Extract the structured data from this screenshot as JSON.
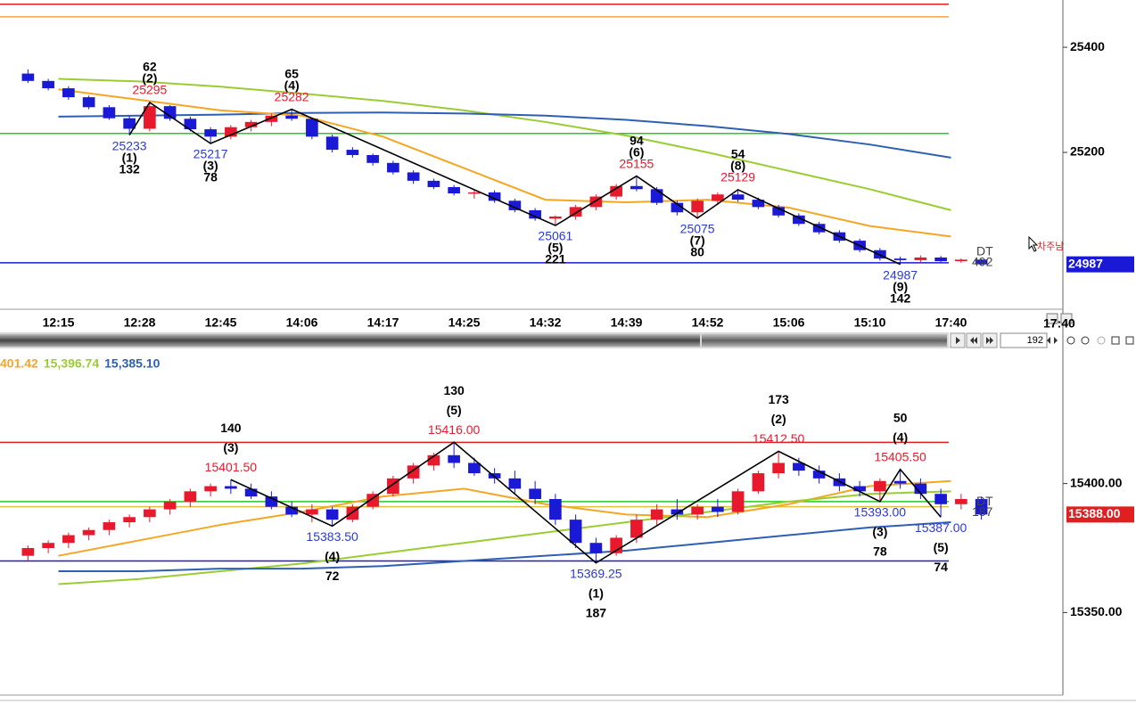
{
  "chart_data": [
    {
      "type": "candlestick",
      "categories": [
        "12:15",
        "12:28",
        "12:45",
        "14:06",
        "14:17",
        "14:25",
        "14:32",
        "14:39",
        "14:52",
        "15:06",
        "15:10",
        "17:40"
      ],
      "time_label": "17:40",
      "bars": 192,
      "cursor_note": "차주남",
      "ylim": [
        24905,
        25490
      ],
      "yticks": [
        25400,
        25200
      ],
      "candles": [
        {
          "open": 25350,
          "high": 25358,
          "low": 25332,
          "close": 25336
        },
        {
          "open": 25336,
          "high": 25340,
          "low": 25318,
          "close": 25322
        },
        {
          "open": 25322,
          "high": 25326,
          "low": 25300,
          "close": 25305
        },
        {
          "open": 25305,
          "high": 25308,
          "low": 25282,
          "close": 25286
        },
        {
          "open": 25286,
          "high": 25290,
          "low": 25262,
          "close": 25265
        },
        {
          "open": 25265,
          "high": 25270,
          "low": 25233,
          "close": 25245
        },
        {
          "open": 25245,
          "high": 25295,
          "low": 25240,
          "close": 25288
        },
        {
          "open": 25288,
          "high": 25290,
          "low": 25260,
          "close": 25264
        },
        {
          "open": 25264,
          "high": 25268,
          "low": 25240,
          "close": 25244
        },
        {
          "open": 25244,
          "high": 25248,
          "low": 25217,
          "close": 25230
        },
        {
          "open": 25230,
          "high": 25252,
          "low": 25225,
          "close": 25248
        },
        {
          "open": 25248,
          "high": 25262,
          "low": 25240,
          "close": 25258
        },
        {
          "open": 25258,
          "high": 25274,
          "low": 25250,
          "close": 25270
        },
        {
          "open": 25270,
          "high": 25282,
          "low": 25260,
          "close": 25264
        },
        {
          "open": 25264,
          "high": 25266,
          "low": 25225,
          "close": 25230
        },
        {
          "open": 25230,
          "high": 25234,
          "low": 25200,
          "close": 25205
        },
        {
          "open": 25205,
          "high": 25210,
          "low": 25190,
          "close": 25195
        },
        {
          "open": 25195,
          "high": 25198,
          "low": 25175,
          "close": 25180
        },
        {
          "open": 25180,
          "high": 25184,
          "low": 25158,
          "close": 25162
        },
        {
          "open": 25162,
          "high": 25166,
          "low": 25140,
          "close": 25146
        },
        {
          "open": 25146,
          "high": 25150,
          "low": 25130,
          "close": 25134
        },
        {
          "open": 25134,
          "high": 25138,
          "low": 25118,
          "close": 25122
        },
        {
          "open": 25122,
          "high": 25130,
          "low": 25112,
          "close": 25124
        },
        {
          "open": 25124,
          "high": 25128,
          "low": 25104,
          "close": 25108
        },
        {
          "open": 25108,
          "high": 25112,
          "low": 25086,
          "close": 25090
        },
        {
          "open": 25090,
          "high": 25094,
          "low": 25070,
          "close": 25074
        },
        {
          "open": 25074,
          "high": 25080,
          "low": 25061,
          "close": 25078
        },
        {
          "open": 25078,
          "high": 25100,
          "low": 25072,
          "close": 25096
        },
        {
          "open": 25096,
          "high": 25120,
          "low": 25090,
          "close": 25116
        },
        {
          "open": 25116,
          "high": 25140,
          "low": 25110,
          "close": 25136
        },
        {
          "open": 25136,
          "high": 25155,
          "low": 25126,
          "close": 25130
        },
        {
          "open": 25130,
          "high": 25134,
          "low": 25100,
          "close": 25104
        },
        {
          "open": 25104,
          "high": 25108,
          "low": 25080,
          "close": 25086
        },
        {
          "open": 25086,
          "high": 25112,
          "low": 25075,
          "close": 25108
        },
        {
          "open": 25108,
          "high": 25124,
          "low": 25100,
          "close": 25120
        },
        {
          "open": 25120,
          "high": 25129,
          "low": 25106,
          "close": 25110
        },
        {
          "open": 25110,
          "high": 25114,
          "low": 25092,
          "close": 25096
        },
        {
          "open": 25096,
          "high": 25100,
          "low": 25076,
          "close": 25080
        },
        {
          "open": 25080,
          "high": 25084,
          "low": 25060,
          "close": 25064
        },
        {
          "open": 25064,
          "high": 25068,
          "low": 25044,
          "close": 25048
        },
        {
          "open": 25048,
          "high": 25052,
          "low": 25028,
          "close": 25032
        },
        {
          "open": 25032,
          "high": 25036,
          "low": 25010,
          "close": 25014
        },
        {
          "open": 25014,
          "high": 25018,
          "low": 24994,
          "close": 24998
        },
        {
          "open": 24998,
          "high": 25002,
          "low": 24987,
          "close": 24995
        },
        {
          "open": 24995,
          "high": 25004,
          "low": 24990,
          "close": 25000
        },
        {
          "open": 25000,
          "high": 25003,
          "low": 24991,
          "close": 24993
        },
        {
          "open": 24993,
          "high": 24998,
          "low": 24990,
          "close": 24996
        },
        {
          "open": 24996,
          "high": 24997,
          "low": 24987,
          "close": 24987
        }
      ],
      "series": [
        {
          "color": "#9acd32",
          "values": [
            25340,
            25335,
            25325,
            25312,
            25298,
            25280,
            25258,
            25232,
            25200,
            25165,
            25130,
            25090
          ]
        },
        {
          "color": "#2f5fb3",
          "values": [
            25268,
            25270,
            25272,
            25275,
            25276,
            25274,
            25270,
            25262,
            25250,
            25235,
            25215,
            25190
          ]
        },
        {
          "color": "#f5a623",
          "values": [
            25320,
            25300,
            25280,
            25270,
            25230,
            25170,
            25110,
            25105,
            25110,
            25095,
            25060,
            25040
          ]
        }
      ],
      "levels": [
        {
          "value": 25482,
          "color": "#e02020"
        },
        {
          "value": 25458,
          "color": "#f5a040"
        },
        {
          "value": 25236,
          "color": "#22cc22"
        },
        {
          "value": 24990,
          "color": "#1a1ad6"
        }
      ],
      "pivots": [
        {
          "price": 25233,
          "wave": "(1)",
          "count": 132
        },
        {
          "price": 25295,
          "wave": "(2)",
          "count": 62
        },
        {
          "price": 25217,
          "wave": "(3)",
          "count": 78
        },
        {
          "price": 25282,
          "wave": "(4)",
          "count": 65
        },
        {
          "price": 25061,
          "wave": "(5)",
          "count": 221
        },
        {
          "price": 25155,
          "wave": "(6)",
          "count": 94
        },
        {
          "price": 25075,
          "wave": "(7)",
          "count": 80
        },
        {
          "price": 25129,
          "wave": "(8)",
          "count": 54
        },
        {
          "price": 24987,
          "wave": "(9)",
          "count": 142
        }
      ],
      "dt_label": "DT",
      "dt_value": 492,
      "last": 24987,
      "last_color": "#1a1ad6"
    },
    {
      "type": "candlestick",
      "ylim": [
        15318,
        15451
      ],
      "yticks": [
        {
          "value": 15400,
          "label": "15400.00"
        },
        {
          "value": 15350,
          "label": "15350.00"
        }
      ],
      "candles": [
        {
          "open": 15372,
          "high": 15376,
          "low": 15370,
          "close": 15375
        },
        {
          "open": 15375,
          "high": 15378,
          "low": 15373,
          "close": 15377
        },
        {
          "open": 15377,
          "high": 15381,
          "low": 15375,
          "close": 15380
        },
        {
          "open": 15380,
          "high": 15383,
          "low": 15378,
          "close": 15382
        },
        {
          "open": 15382,
          "high": 15386,
          "low": 15380,
          "close": 15385
        },
        {
          "open": 15385,
          "high": 15388,
          "low": 15383,
          "close": 15387
        },
        {
          "open": 15387,
          "high": 15391,
          "low": 15385,
          "close": 15390
        },
        {
          "open": 15390,
          "high": 15394,
          "low": 15388,
          "close": 15393
        },
        {
          "open": 15393,
          "high": 15398,
          "low": 15391,
          "close": 15397
        },
        {
          "open": 15397,
          "high": 15400,
          "low": 15395,
          "close": 15399
        },
        {
          "open": 15399,
          "high": 15401.5,
          "low": 15396,
          "close": 15398
        },
        {
          "open": 15398,
          "high": 15400,
          "low": 15394,
          "close": 15395
        },
        {
          "open": 15395,
          "high": 15397,
          "low": 15390,
          "close": 15391
        },
        {
          "open": 15391,
          "high": 15393,
          "low": 15387,
          "close": 15388
        },
        {
          "open": 15388,
          "high": 15392,
          "low": 15385,
          "close": 15390
        },
        {
          "open": 15390,
          "high": 15391,
          "low": 15383.5,
          "close": 15386
        },
        {
          "open": 15386,
          "high": 15392,
          "low": 15385,
          "close": 15391
        },
        {
          "open": 15391,
          "high": 15397,
          "low": 15390,
          "close": 15396
        },
        {
          "open": 15396,
          "high": 15403,
          "low": 15395,
          "close": 15402
        },
        {
          "open": 15402,
          "high": 15408,
          "low": 15400,
          "close": 15407
        },
        {
          "open": 15407,
          "high": 15412,
          "low": 15405,
          "close": 15411
        },
        {
          "open": 15411,
          "high": 15416,
          "low": 15406,
          "close": 15408
        },
        {
          "open": 15408,
          "high": 15410,
          "low": 15403,
          "close": 15404
        },
        {
          "open": 15404,
          "high": 15406,
          "low": 15400,
          "close": 15402
        },
        {
          "open": 15402,
          "high": 15405,
          "low": 15396,
          "close": 15398
        },
        {
          "open": 15398,
          "high": 15401,
          "low": 15392,
          "close": 15394
        },
        {
          "open": 15394,
          "high": 15396,
          "low": 15384,
          "close": 15386
        },
        {
          "open": 15386,
          "high": 15388,
          "low": 15375,
          "close": 15377
        },
        {
          "open": 15377,
          "high": 15379,
          "low": 15369.25,
          "close": 15373
        },
        {
          "open": 15373,
          "high": 15380,
          "low": 15372,
          "close": 15379
        },
        {
          "open": 15379,
          "high": 15388,
          "low": 15377,
          "close": 15386
        },
        {
          "open": 15386,
          "high": 15392,
          "low": 15384,
          "close": 15390
        },
        {
          "open": 15390,
          "high": 15394,
          "low": 15386,
          "close": 15388
        },
        {
          "open": 15388,
          "high": 15392,
          "low": 15386,
          "close": 15391
        },
        {
          "open": 15391,
          "high": 15394,
          "low": 15387,
          "close": 15389
        },
        {
          "open": 15389,
          "high": 15398,
          "low": 15388,
          "close": 15397
        },
        {
          "open": 15397,
          "high": 15405,
          "low": 15396,
          "close": 15404
        },
        {
          "open": 15404,
          "high": 15412.5,
          "low": 15402,
          "close": 15408
        },
        {
          "open": 15408,
          "high": 15410,
          "low": 15403,
          "close": 15405
        },
        {
          "open": 15405,
          "high": 15407,
          "low": 15400,
          "close": 15402
        },
        {
          "open": 15402,
          "high": 15404,
          "low": 15397,
          "close": 15399
        },
        {
          "open": 15399,
          "high": 15401,
          "low": 15395,
          "close": 15397
        },
        {
          "open": 15397,
          "high": 15402,
          "low": 15393,
          "close": 15401
        },
        {
          "open": 15401,
          "high": 15405.5,
          "low": 15398,
          "close": 15400
        },
        {
          "open": 15400,
          "high": 15402,
          "low": 15394,
          "close": 15396
        },
        {
          "open": 15396,
          "high": 15398,
          "low": 15387,
          "close": 15392
        },
        {
          "open": 15392,
          "high": 15396,
          "low": 15390,
          "close": 15394
        },
        {
          "open": 15394,
          "high": 15395,
          "low": 15386,
          "close": 15388
        }
      ],
      "series": [
        {
          "name": "401.42",
          "color": "#f5a623",
          "values": [
            15372,
            15378,
            15384,
            15389,
            15395,
            15398,
            15392,
            15388,
            15387,
            15392,
            15399,
            15401
          ]
        },
        {
          "name": "15,396.74",
          "color": "#9acd32",
          "values": [
            15361,
            15363,
            15366,
            15369,
            15373,
            15377,
            15381,
            15385,
            15389,
            15393,
            15396,
            15397
          ]
        },
        {
          "name": "15,385.10",
          "color": "#2f5fb3",
          "values": [
            15366,
            15366,
            15367,
            15367,
            15368,
            15370,
            15372,
            15374,
            15377,
            15380,
            15383,
            15385
          ]
        }
      ],
      "levels": [
        {
          "value": 15416,
          "color": "#e02020"
        },
        {
          "value": 15393,
          "color": "#22cc22"
        },
        {
          "value": 15391,
          "color": "#e0c040"
        },
        {
          "value": 15370,
          "color": "#1a1ad6"
        }
      ],
      "pivots": [
        {
          "price": 15401.5,
          "price_label": "15401.50",
          "wave": "(3)",
          "count": 140
        },
        {
          "price": 15383.5,
          "price_label": "15383.50",
          "wave": "(4)",
          "count": 72
        },
        {
          "price": 15416,
          "price_label": "15416.00",
          "wave": "(5)",
          "count": 130
        },
        {
          "price": 15369.25,
          "price_label": "15369.25",
          "wave": "(1)",
          "count": 187
        },
        {
          "price": 15412.5,
          "price_label": "15412.50",
          "wave": "(2)",
          "count": 173
        },
        {
          "price": 15393,
          "price_label": "15393.00",
          "wave": "(3)",
          "count": 78
        },
        {
          "price": 15405.5,
          "price_label": "15405.50",
          "wave": "(4)",
          "count": 50
        },
        {
          "price": 15387,
          "price_label": "15387.00",
          "wave": "(5)",
          "count": 74
        }
      ],
      "dt_label": "DT",
      "dt_value": 187,
      "last": {
        "value": 15388,
        "label": "15388.00"
      },
      "last_color": "#e02020"
    }
  ]
}
